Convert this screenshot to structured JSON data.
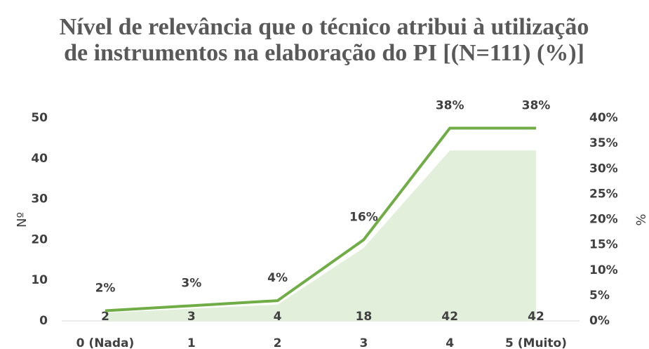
{
  "chart_data": {
    "type": "area-line",
    "title": "Nível de relevância que o técnico atribui à utilização de instrumentos na elaboração do PI [(N=111) (%)]",
    "y_label": "Nº",
    "y2_label": "%",
    "categories": [
      "0 (Nada)",
      "1",
      "2",
      "3",
      "4",
      "5 (Muito)"
    ],
    "series": [
      {
        "kind": "area",
        "color": "#e2efda",
        "values": [
          2,
          3,
          4,
          18,
          42,
          42
        ]
      },
      {
        "kind": "line",
        "color": "#70ad47",
        "axis": "y2",
        "values": [
          2,
          3,
          4,
          16,
          38,
          38
        ],
        "value_labels": [
          "2%",
          "3%",
          "4%",
          "16%",
          "38%",
          "38%"
        ]
      }
    ],
    "ylim": [
      0,
      50
    ],
    "yticks": [
      0,
      10,
      20,
      30,
      40,
      50
    ],
    "y2lim": [
      0,
      40
    ],
    "y2ticks": [
      {
        "value": 0,
        "label": "0%"
      },
      {
        "value": 5,
        "label": "5%"
      },
      {
        "value": 10,
        "label": "10%"
      },
      {
        "value": 15,
        "label": "15%"
      },
      {
        "value": 20,
        "label": "20%"
      },
      {
        "value": 25,
        "label": "25%"
      },
      {
        "value": 30,
        "label": "30%"
      },
      {
        "value": 35,
        "label": "35%"
      },
      {
        "value": 40,
        "label": "40%"
      }
    ]
  }
}
